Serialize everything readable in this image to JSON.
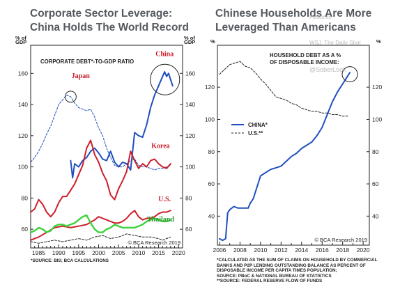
{
  "titles": {
    "left": "Corporate Sector Leverage: China Holds The World Record",
    "right": "Chinese Households Are More Leveraged Than Americans"
  },
  "watermarks": [
    "Posted on",
    "WSJ, The Daily Shot",
    "@SoberLook"
  ],
  "footnotes": {
    "left": [
      "*SOURCE: BIS; BCA CALCULATIONS"
    ],
    "right": [
      "*CALCULATED AS THE SUM OF CLAIMS ON HOUSEHOLD BY COMMERCIAL",
      "BANKS AND P2P LENDING OUTSTANDING BALANCE AS PERCENT OF",
      "DISPOSABLE INCOME PER CAPITA TIMES POPULATION;",
      "SOURCE: PBoC & NATIONAL BUREAU OF STATISTICS",
      "**SOURCE: FEDERAL RESERVE FLOW OF FUNDS"
    ]
  },
  "colors": {
    "china": "#1f4fbf",
    "japan": "#1f4fbf",
    "korea": "#cc1f2a",
    "us": "#cc1f2a",
    "thailand": "#3cd33c",
    "black": "#222222",
    "label_red": "#cc1f2a"
  },
  "chart_data": [
    {
      "type": "line",
      "unit_left": "% of GDP",
      "unit_right": "% of GDP",
      "panel_title": "CORPORATE DEBT*-TO-GDP RATIO",
      "credit": "© BCA Research 2019",
      "xlim": [
        1983,
        2021
      ],
      "ylim": [
        48,
        178
      ],
      "x_ticks": [
        1985,
        1990,
        1995,
        2000,
        2005,
        2010,
        2015,
        2020
      ],
      "y_ticks": [
        60,
        80,
        100,
        120,
        140,
        160
      ],
      "series": [
        {
          "name": "China",
          "style": "solid",
          "color": "#1f4fbf",
          "x": [
            1993,
            1993.5,
            1994,
            1995,
            1996,
            1997,
            1998,
            1999,
            2000,
            2001,
            2002,
            2003,
            2004,
            2005,
            2006,
            2007,
            2008,
            2009,
            2010,
            2011,
            2012,
            2013,
            2014,
            2015,
            2016,
            2016.5,
            2017,
            2017.5,
            2018,
            2018.5
          ],
          "y": [
            104,
            93,
            102,
            100,
            104,
            106,
            110,
            112,
            109,
            105,
            104,
            110,
            103,
            100,
            103,
            102,
            98,
            122,
            120,
            119,
            127,
            138,
            146,
            152,
            158,
            161,
            158,
            160,
            156,
            152
          ]
        },
        {
          "name": "Japan",
          "style": "dashed",
          "color": "#1f4fbf",
          "x": [
            1983,
            1984,
            1985,
            1986,
            1987,
            1988,
            1989,
            1990,
            1991,
            1992,
            1993,
            1994,
            1995,
            1996,
            1997,
            1998,
            1999,
            2000,
            2001,
            2002,
            2003,
            2004,
            2005,
            2006,
            2007,
            2008,
            2009,
            2010,
            2011,
            2012,
            2013,
            2014,
            2015,
            2016,
            2017,
            2018
          ],
          "y": [
            103,
            106,
            110,
            115,
            121,
            126,
            133,
            140,
            143,
            146,
            145,
            141,
            138,
            137,
            136,
            137,
            132,
            125,
            120,
            112,
            106,
            101,
            100,
            100,
            102,
            104,
            105,
            101,
            100,
            100,
            99,
            98,
            99,
            99,
            100,
            101
          ]
        },
        {
          "name": "Korea",
          "style": "solid",
          "color": "#cc1f2a",
          "x": [
            1983,
            1984,
            1985,
            1986,
            1987,
            1988,
            1989,
            1990,
            1991,
            1992,
            1993,
            1994,
            1995,
            1996,
            1997,
            1998,
            1999,
            2000,
            2001,
            2002,
            2003,
            2004,
            2005,
            2006,
            2007,
            2008,
            2009,
            2010,
            2011,
            2012,
            2013,
            2014,
            2015,
            2016,
            2017,
            2018
          ],
          "y": [
            71,
            73,
            79,
            76,
            71,
            68,
            71,
            77,
            81,
            81,
            85,
            89,
            95,
            101,
            112,
            117,
            108,
            103,
            96,
            91,
            82,
            79,
            86,
            91,
            97,
            110,
            104,
            99,
            102,
            100,
            104,
            105,
            102,
            100,
            99,
            102
          ]
        },
        {
          "name": "U.S.",
          "style": "solid",
          "color": "#cc1f2a",
          "x": [
            1983,
            1985,
            1987,
            1989,
            1991,
            1993,
            1995,
            1997,
            1999,
            2000,
            2001,
            2002,
            2003,
            2004,
            2005,
            2006,
            2007,
            2008,
            2009,
            2010,
            2011,
            2012,
            2013,
            2014,
            2015,
            2016,
            2017,
            2018
          ],
          "y": [
            53,
            55,
            58,
            61,
            62,
            61,
            62,
            63,
            66,
            68,
            67,
            66,
            65,
            64,
            64,
            65,
            67,
            70,
            72,
            68,
            66,
            67,
            67,
            68,
            70,
            71,
            71,
            72
          ]
        },
        {
          "name": "Thailand",
          "style": "solid",
          "color": "#3cd33c",
          "x": [
            1983,
            1984,
            1985,
            1986,
            1987,
            1988,
            1989,
            1990,
            1991,
            1992,
            1993,
            1994,
            1995,
            1996,
            1997,
            1998,
            1999,
            2000,
            2001,
            2002,
            2003,
            2004,
            2005,
            2006,
            2007,
            2008,
            2009,
            2010,
            2011,
            2012,
            2013,
            2014,
            2015,
            2016,
            2017,
            2018
          ],
          "y": [
            58,
            59,
            61,
            60,
            58,
            59,
            62,
            63,
            63,
            62,
            63,
            64,
            66,
            68,
            69,
            64,
            60,
            58,
            58,
            60,
            61,
            63,
            62,
            61,
            61,
            61,
            61,
            62,
            63,
            65,
            66,
            67,
            66,
            65,
            65,
            66
          ]
        },
        {
          "name": "",
          "style": "dashed",
          "color": "#222222",
          "x": [
            1983,
            1985,
            1987,
            1989,
            1991,
            1993,
            1995,
            1997,
            1999,
            2001,
            2003,
            2005,
            2007,
            2009,
            2011,
            2013,
            2015,
            2016,
            2017,
            2018
          ],
          "y": [
            52,
            51,
            52,
            53,
            52,
            53,
            54,
            53,
            55,
            56,
            54,
            55,
            57,
            56,
            55,
            55,
            54,
            53,
            54,
            55
          ]
        }
      ],
      "series_labels": [
        "China",
        "Japan",
        "Korea",
        "U.S.",
        "Thailand"
      ]
    },
    {
      "type": "line",
      "unit_left": "%",
      "unit_right": "%",
      "panel_title": "HOUSEHOLD DEBT AS A % OF DISPOSABLE INCOME:",
      "credit": "© BCA Research 2019",
      "xlim": [
        2005.8,
        2020.6
      ],
      "ylim": [
        22,
        146
      ],
      "x_ticks": [
        2006,
        2008,
        2010,
        2012,
        2014,
        2016,
        2018,
        2020
      ],
      "y_ticks": [
        40,
        60,
        80,
        100,
        120
      ],
      "legend": [
        "CHINA*",
        "U.S.**"
      ],
      "series": [
        {
          "name": "CHINA*",
          "style": "solid",
          "color": "#1f4fbf",
          "x": [
            2006,
            2006.3,
            2006.6,
            2006.8,
            2007,
            2007.4,
            2007.8,
            2008,
            2008.4,
            2008.8,
            2009,
            2009.3,
            2009.6,
            2010,
            2010.5,
            2011,
            2011.5,
            2012,
            2012.5,
            2013,
            2013.5,
            2014,
            2014.5,
            2015,
            2015.5,
            2016,
            2016.5,
            2017,
            2017.5,
            2018,
            2018.4,
            2018.7
          ],
          "y": [
            26,
            25,
            26,
            42,
            44,
            46,
            45,
            45,
            45,
            45,
            48,
            51,
            57,
            65,
            67,
            69,
            70,
            71,
            74,
            77,
            79,
            82,
            84,
            86,
            90,
            95,
            103,
            111,
            117,
            122,
            126,
            129
          ]
        },
        {
          "name": "U.S.**",
          "style": "dashed",
          "color": "#222222",
          "x": [
            2006,
            2006.5,
            2007,
            2007.5,
            2008,
            2008.5,
            2009,
            2009.5,
            2010,
            2010.5,
            2011,
            2011.5,
            2012,
            2012.5,
            2013,
            2013.5,
            2014,
            2014.5,
            2015,
            2015.5,
            2016,
            2016.5,
            2017,
            2017.5,
            2018,
            2018.5
          ],
          "y": [
            128,
            131,
            134,
            135,
            136,
            133,
            132,
            129,
            125,
            122,
            118,
            114,
            113,
            112,
            110,
            109,
            107,
            106,
            105,
            105,
            104,
            104,
            103,
            103,
            102,
            102
          ]
        }
      ]
    }
  ]
}
